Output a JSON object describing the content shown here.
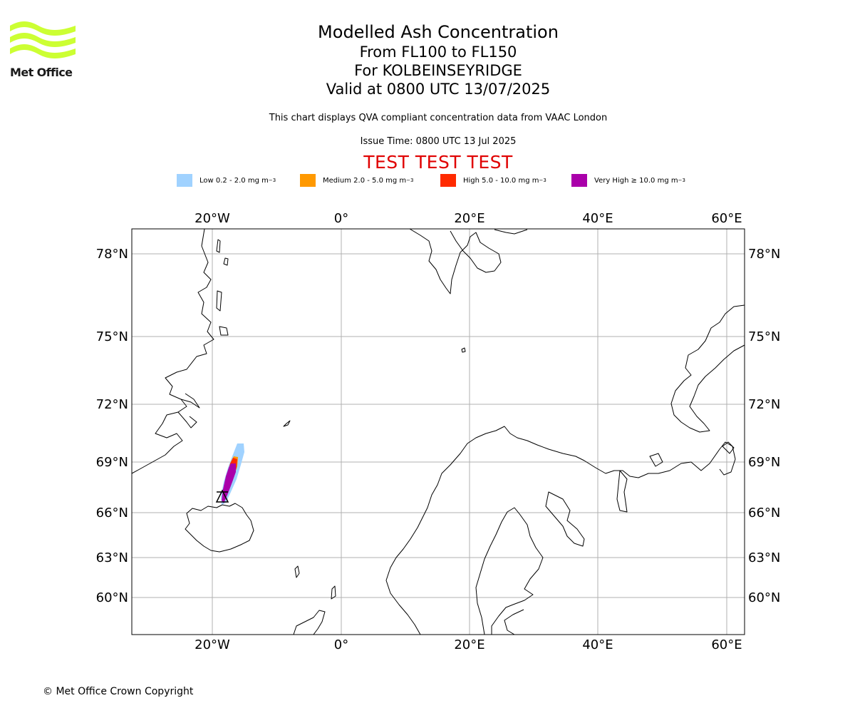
{
  "logo": {
    "text": "Met Office",
    "color": "#ccff33"
  },
  "title": {
    "line1": "Modelled Ash Concentration",
    "line2": "From FL100 to FL150",
    "line3": "For KOLBEINSEYRIDGE",
    "line4": "Valid at 0800 UTC 13/07/2025"
  },
  "subtitle": "This chart displays QVA compliant concentration data from VAAC London",
  "issue_time": "Issue Time: 0800 UTC 13 Jul 2025",
  "test_banner": "TEST TEST TEST",
  "legend": [
    {
      "label": "Low 0.2 - 2.0 mg m",
      "color": "#a0d2ff"
    },
    {
      "label": "Medium 2.0 - 5.0 mg m",
      "color": "#ff9900"
    },
    {
      "label": "High 5.0 - 10.0 mg m",
      "color": "#ff2a00"
    },
    {
      "label": "Very High ≥ 10.0 mg m",
      "color": "#aa00aa"
    }
  ],
  "legend_unit_exponent": "−3",
  "map": {
    "longitude_ticks": [
      "20°W",
      "0°",
      "20°E",
      "40°E",
      "60°E"
    ],
    "latitude_ticks": [
      "78°N",
      "75°N",
      "72°N",
      "69°N",
      "66°N",
      "63°N",
      "60°N"
    ],
    "gridlines": true,
    "volcano_marker": "triangle"
  },
  "copyright": "© Met Office Crown Copyright"
}
